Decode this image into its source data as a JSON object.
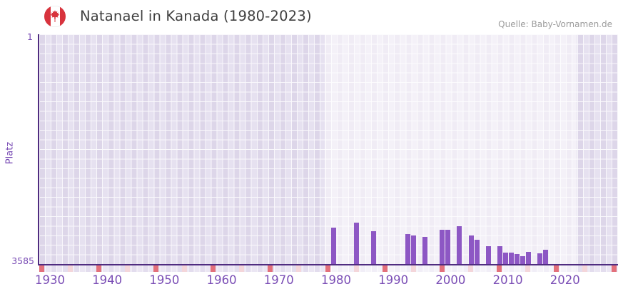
{
  "header": {
    "flag_icon": "canada-flag-icon",
    "title": "Natanael in Kanada (1980-2023)",
    "source": "Quelle: Baby-Vornamen.de"
  },
  "chart_data": {
    "type": "bar",
    "title": "Natanael in Kanada (1980-2023)",
    "xlabel": "",
    "ylabel": "Platz",
    "y_axis": {
      "label": "Platz",
      "top_tick": "1",
      "bottom_tick": "3585",
      "min": 1,
      "max": 3585,
      "inverted": true
    },
    "x_axis": {
      "first_year": 1930,
      "last_year": 2030,
      "tick_labels": [
        "1930",
        "1940",
        "1950",
        "1960",
        "1970",
        "1980",
        "1990",
        "2000",
        "2010",
        "2020"
      ],
      "major_tick_interval": 10,
      "minor_tick_interval": 5
    },
    "highlight_band": {
      "from_year": 1980,
      "to_year": 2023
    },
    "grid": true,
    "legend": "none",
    "series": [
      {
        "name": "Natanael",
        "unit": "Platz",
        "points": [
          {
            "year": 1981,
            "rank": 3040
          },
          {
            "year": 1985,
            "rank": 2960
          },
          {
            "year": 1988,
            "rank": 3100
          },
          {
            "year": 1994,
            "rank": 3140
          },
          {
            "year": 1995,
            "rank": 3160
          },
          {
            "year": 1997,
            "rank": 3190
          },
          {
            "year": 2000,
            "rank": 3070
          },
          {
            "year": 2001,
            "rank": 3070
          },
          {
            "year": 2003,
            "rank": 3020
          },
          {
            "year": 2005,
            "rank": 3160
          },
          {
            "year": 2006,
            "rank": 3230
          },
          {
            "year": 2008,
            "rank": 3330
          },
          {
            "year": 2010,
            "rank": 3330
          },
          {
            "year": 2011,
            "rank": 3440
          },
          {
            "year": 2012,
            "rank": 3440
          },
          {
            "year": 2013,
            "rank": 3460
          },
          {
            "year": 2014,
            "rank": 3490
          },
          {
            "year": 2015,
            "rank": 3420
          },
          {
            "year": 2017,
            "rank": 3450
          },
          {
            "year": 2018,
            "rank": 3390
          }
        ]
      }
    ]
  },
  "colors": {
    "bar": "#8d57c4",
    "axis_line": "#4f2c80",
    "axis_text": "#7a4db5",
    "major_tick_cell": "#e3707b",
    "minor_tick_cell": "#f4d6da",
    "title_text": "#3f3f3f",
    "source_text": "#9b9b9b",
    "flag_red": "#d8333d",
    "plot_stripe_a": "#ddd6e9",
    "plot_stripe_b": "#e6e1f0",
    "band_overlay": "rgba(255,255,255,0.55)"
  }
}
